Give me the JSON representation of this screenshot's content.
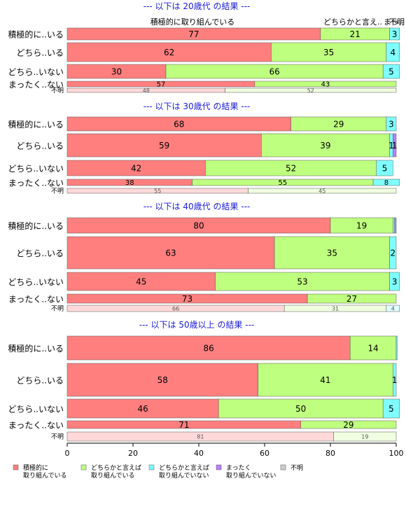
{
  "colors": {
    "title": "#1a1adb",
    "series": [
      "#ff7f7f",
      "#bfff7f",
      "#7fffff",
      "#bf7fff",
      "#cccccc"
    ],
    "faded_series": [
      "#ffd9d9",
      "#f0ffe0",
      "#e0ffff",
      "#f0e0ff",
      "#eeeeee"
    ]
  },
  "chart_data": {
    "type": "bar",
    "orientation": "horizontal",
    "stacked": "percent",
    "xlim": [
      0,
      100
    ],
    "xticks": [
      "0",
      "20",
      "40",
      "60",
      "80",
      "100"
    ],
    "legend_position": "bottom",
    "legend": [
      {
        "line1": "積極的に",
        "line2": "取り組んでいる"
      },
      {
        "line1": "どちらかと言えば",
        "line2": "取り組んでいる"
      },
      {
        "line1": "どちらかと言えば",
        "line2": "取り組んでいない"
      },
      {
        "line1": "まったく",
        "line2": "取り組んでいない"
      },
      {
        "line1": "不明",
        "line2": ""
      }
    ],
    "panels": [
      {
        "title": "--- 以下は 20歳代 の結果 ---",
        "top_annotation_center": "積極的に取り組んでいる",
        "top_annotation_right": "どちらかと言え..",
        "top_annotation_right2": "まっ..",
        "top_annotation_right3": "不明",
        "rows": [
          {
            "label": "積極的に..いる",
            "values": [
              77,
              21,
              3,
              0,
              0
            ],
            "labels": [
              "77",
              "21",
              "3",
              "",
              ""
            ]
          },
          {
            "label": "どちら..いる",
            "values": [
              62,
              35,
              4,
              0,
              0
            ],
            "labels": [
              "62",
              "35",
              "4",
              "",
              ""
            ]
          },
          {
            "label": "どちら..いない",
            "values": [
              30,
              66,
              5,
              0,
              0
            ],
            "labels": [
              "30",
              "66",
              "5",
              "",
              ""
            ]
          },
          {
            "label": "まったく..ない",
            "values": [
              57,
              43,
              0,
              0,
              0
            ],
            "labels": [
              "57",
              "43",
              "",
              "",
              ""
            ]
          },
          {
            "label": "不明",
            "values": [
              48,
              52,
              0,
              0,
              0
            ],
            "labels": [
              "48",
              "52",
              "",
              "",
              ""
            ],
            "faded": true
          }
        ]
      },
      {
        "title": "--- 以下は 30歳代 の結果 ---",
        "rows": [
          {
            "label": "積極的に..いる",
            "values": [
              68,
              29,
              3,
              0,
              0
            ],
            "labels": [
              "68",
              "29",
              "3",
              "",
              ""
            ]
          },
          {
            "label": "どちら..いる",
            "values": [
              59,
              39,
              1,
              1,
              0
            ],
            "labels": [
              "59",
              "39",
              "1",
              "1",
              ""
            ]
          },
          {
            "label": "どちら..いない",
            "values": [
              42,
              52,
              5,
              0,
              0
            ],
            "labels": [
              "42",
              "52",
              "5",
              "",
              ""
            ]
          },
          {
            "label": "まったく..ない",
            "values": [
              38,
              55,
              8,
              0,
              0
            ],
            "labels": [
              "38",
              "55",
              "8",
              "",
              ""
            ]
          },
          {
            "label": "不明",
            "values": [
              55,
              45,
              0,
              0,
              0
            ],
            "labels": [
              "55",
              "45",
              "",
              "",
              ""
            ],
            "faded": true
          }
        ]
      },
      {
        "title": "--- 以下は 40歳代 の結果 ---",
        "rows": [
          {
            "label": "積極的に..いる",
            "values": [
              80,
              19,
              0.5,
              0.5,
              0
            ],
            "labels": [
              "80",
              "19",
              "",
              "",
              ""
            ]
          },
          {
            "label": "どちら..いる",
            "values": [
              63,
              35,
              2,
              0,
              0
            ],
            "labels": [
              "63",
              "35",
              "2",
              "",
              ""
            ]
          },
          {
            "label": "どちら..いない",
            "values": [
              45,
              53,
              3,
              0,
              0
            ],
            "labels": [
              "45",
              "53",
              "3",
              "",
              ""
            ]
          },
          {
            "label": "まったく..ない",
            "values": [
              73,
              27,
              0,
              0,
              0
            ],
            "labels": [
              "73",
              "27",
              "",
              "",
              ""
            ]
          },
          {
            "label": "不明",
            "values": [
              66,
              31,
              4,
              0,
              0
            ],
            "labels": [
              "66",
              "31",
              "4",
              "",
              ""
            ],
            "faded": true
          }
        ]
      },
      {
        "title": "--- 以下は 50歳以上 の結果 ---",
        "rows": [
          {
            "label": "積極的に..いる",
            "values": [
              86,
              14,
              0.3,
              0,
              0
            ],
            "labels": [
              "86",
              "14",
              "",
              "",
              ""
            ]
          },
          {
            "label": "どちら..いる",
            "values": [
              58,
              41,
              1,
              0,
              0
            ],
            "labels": [
              "58",
              "41",
              "1",
              "",
              ""
            ]
          },
          {
            "label": "どちら..いない",
            "values": [
              46,
              50,
              5,
              0,
              0
            ],
            "labels": [
              "46",
              "50",
              "5",
              "",
              ""
            ]
          },
          {
            "label": "まったく..ない",
            "values": [
              71,
              29,
              0,
              0,
              0
            ],
            "labels": [
              "71",
              "29",
              "",
              "",
              ""
            ]
          },
          {
            "label": "不明",
            "values": [
              81,
              19,
              0,
              0,
              0
            ],
            "labels": [
              "81",
              "19",
              "",
              "",
              ""
            ],
            "faded": true
          }
        ]
      }
    ]
  }
}
